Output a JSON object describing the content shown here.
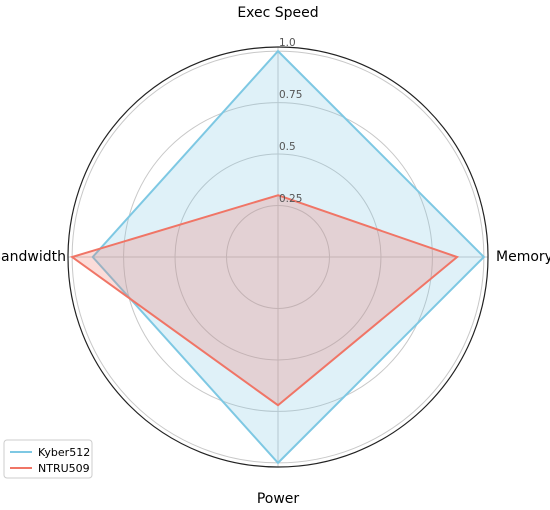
{
  "chart_data": {
    "type": "radar",
    "axes": [
      "Exec Speed",
      "Memory",
      "Power",
      "Bandwidth"
    ],
    "radial_ticks": [
      0.25,
      0.5,
      0.75,
      1.0
    ],
    "radial_tick_labels": [
      "0.25",
      "0.5",
      "0.75",
      "1.0"
    ],
    "rlim": [
      0,
      1.02
    ],
    "grid": true,
    "legend_position": "bottom-left",
    "series": [
      {
        "name": "Kyber512",
        "values": [
          1.0,
          1.0,
          1.0,
          0.9
        ],
        "color": "#7ec8e3",
        "fill": "#7ec8e3"
      },
      {
        "name": "NTRU509",
        "values": [
          0.3,
          0.87,
          0.72,
          1.0
        ],
        "color": "#f07566",
        "fill": "#f07566"
      }
    ]
  }
}
